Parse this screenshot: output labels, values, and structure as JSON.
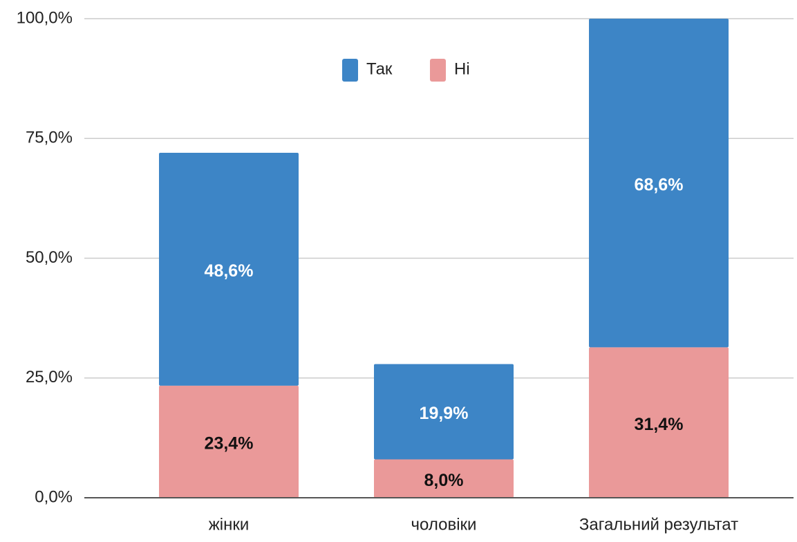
{
  "chart_data": {
    "type": "stacked_bar",
    "categories": [
      "жінки",
      "чоловіки",
      "Загальний результат"
    ],
    "series": [
      {
        "name": "Так",
        "color": "#3d85c6",
        "values": [
          48.6,
          19.9,
          68.6
        ],
        "value_labels": [
          "48,6%",
          "19,9%",
          "68,6%"
        ]
      },
      {
        "name": "Ні",
        "color": "#ea9999",
        "values": [
          23.4,
          8.0,
          31.4
        ],
        "value_labels": [
          "23,4%",
          "8,0%",
          "31,4%"
        ]
      }
    ],
    "ylim": [
      0,
      100
    ],
    "yticks": [
      {
        "value": 0,
        "label": "0,0%"
      },
      {
        "value": 25,
        "label": "25,0%"
      },
      {
        "value": 50,
        "label": "50,0%"
      },
      {
        "value": 75,
        "label": "75,0%"
      },
      {
        "value": 100,
        "label": "100,0%"
      }
    ],
    "grid": true,
    "legend": "top"
  }
}
